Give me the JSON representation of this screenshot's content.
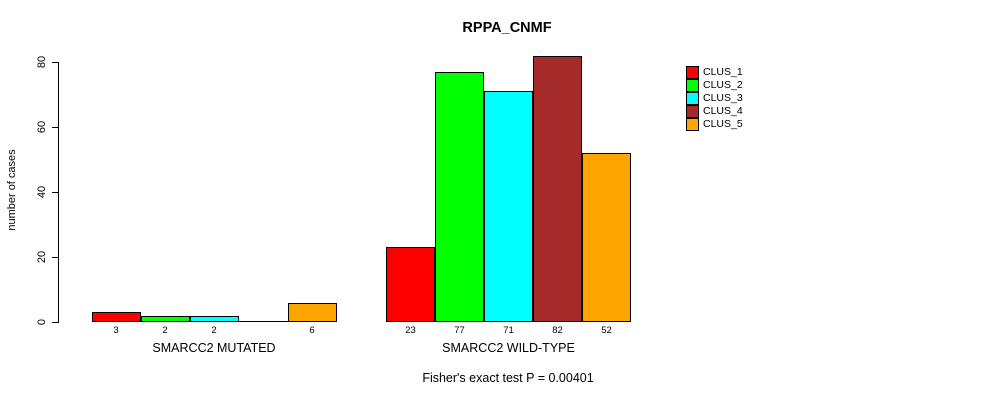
{
  "title": "RPPA_CNMF",
  "chart_data": {
    "type": "bar",
    "title": "RPPA_CNMF",
    "xlabel": "",
    "ylabel": "number of cases",
    "ylim": [
      0,
      80
    ],
    "yticks": [
      0,
      20,
      40,
      60,
      80
    ],
    "grid": false,
    "legend_position": "right",
    "show_zero_value_labels": false,
    "categories": [
      "SMARCC2 MUTATED",
      "SMARCC2 WILD-TYPE"
    ],
    "series": [
      {
        "name": "CLUS_1",
        "color": "#ff0000",
        "values": [
          3,
          23
        ]
      },
      {
        "name": "CLUS_2",
        "color": "#00ff00",
        "values": [
          2,
          77
        ]
      },
      {
        "name": "CLUS_3",
        "color": "#00ffff",
        "values": [
          2,
          71
        ]
      },
      {
        "name": "CLUS_4",
        "color": "#a52a2a",
        "values": [
          0,
          82
        ]
      },
      {
        "name": "CLUS_5",
        "color": "#ffa500",
        "values": [
          6,
          52
        ]
      }
    ],
    "annotation": "Fisher's exact test P = 0.00401"
  }
}
